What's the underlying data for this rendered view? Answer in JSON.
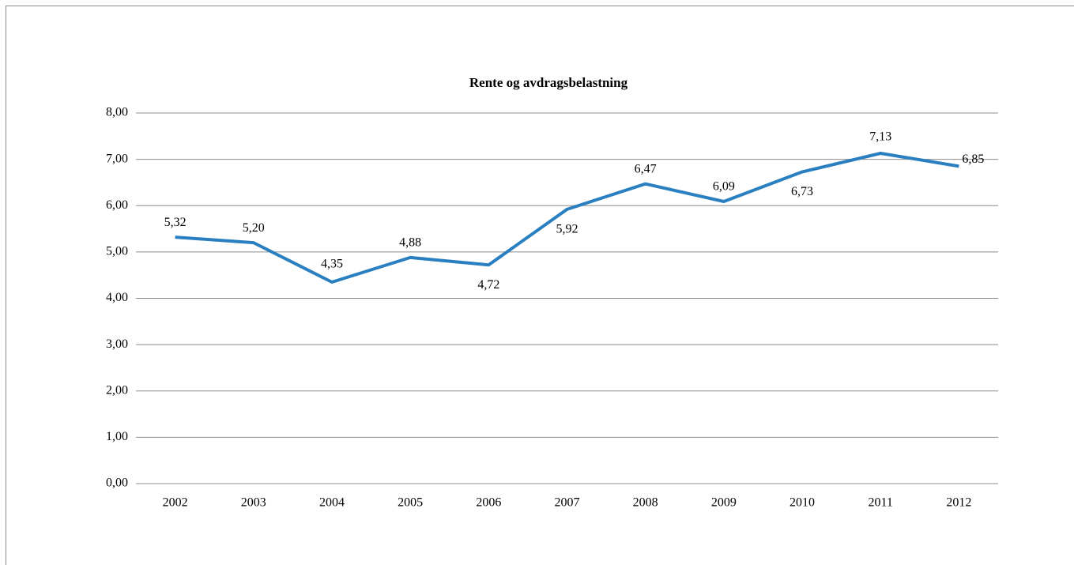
{
  "chart_data": {
    "type": "line",
    "title": "Rente og avdragsbelastning",
    "categories": [
      "2002",
      "2003",
      "2004",
      "2005",
      "2006",
      "2007",
      "2008",
      "2009",
      "2010",
      "2011",
      "2012"
    ],
    "series": [
      {
        "color": "#2a7fc0",
        "values": [
          5.32,
          5.2,
          4.35,
          4.88,
          4.72,
          5.92,
          6.47,
          6.09,
          6.73,
          7.13,
          6.85
        ],
        "value_labels": [
          "5,32",
          "5,20",
          "4,35",
          "4,88",
          "4,72",
          "5,92",
          "6,47",
          "6,09",
          "6,73",
          "7,13",
          "6,85"
        ]
      }
    ],
    "ylim": [
      0,
      8
    ],
    "yticks": [
      {
        "value": 0,
        "label": "0,00"
      },
      {
        "value": 1,
        "label": "1,00"
      },
      {
        "value": 2,
        "label": "2,00"
      },
      {
        "value": 3,
        "label": "3,00"
      },
      {
        "value": 4,
        "label": "4,00"
      },
      {
        "value": 5,
        "label": "5,00"
      },
      {
        "value": 6,
        "label": "6,00"
      },
      {
        "value": 7,
        "label": "7,00"
      },
      {
        "value": 8,
        "label": "8,00"
      }
    ],
    "grid": true
  }
}
